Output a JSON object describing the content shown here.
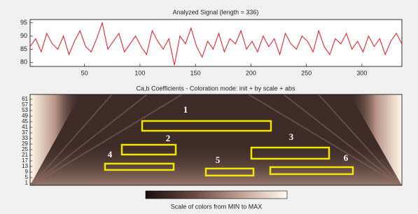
{
  "chart_data": [
    {
      "type": "line",
      "title": "Analyzed Signal (length = 336)",
      "x": [
        1,
        6,
        11,
        16,
        21,
        26,
        31,
        36,
        41,
        46,
        51,
        56,
        61,
        66,
        71,
        76,
        81,
        86,
        91,
        96,
        101,
        106,
        111,
        116,
        121,
        126,
        131,
        136,
        141,
        146,
        151,
        156,
        161,
        166,
        171,
        176,
        181,
        186,
        191,
        196,
        201,
        206,
        211,
        216,
        221,
        226,
        231,
        236,
        241,
        246,
        251,
        256,
        261,
        266,
        271,
        276,
        281,
        286,
        291,
        296,
        301,
        306,
        311,
        316,
        321,
        326,
        331,
        336
      ],
      "series": [
        {
          "color": "#e8141e",
          "values": [
            86,
            89,
            84,
            91,
            87,
            85,
            90,
            83,
            88,
            92,
            86,
            84,
            89,
            95,
            85,
            88,
            91,
            84,
            87,
            90,
            86,
            83,
            92,
            88,
            85,
            89,
            79,
            90,
            87,
            93,
            86,
            82,
            88,
            85,
            91,
            84,
            89,
            87,
            92,
            85,
            88,
            84,
            90,
            86,
            89,
            83,
            91,
            87,
            85,
            90,
            88,
            84,
            92,
            86,
            83,
            89,
            87,
            91,
            85,
            88,
            84,
            90,
            86,
            89,
            83,
            88,
            91,
            87
          ]
        }
      ],
      "xlim": [
        1,
        336
      ],
      "ylim": [
        78.5,
        96.2
      ],
      "xticks": [
        50,
        100,
        150,
        200,
        250,
        300
      ],
      "yticks": [
        80,
        85,
        90,
        95
      ]
    },
    {
      "type": "heatmap",
      "title": "Ca,b Coefficients - Coloration mode: init + by scale + abs",
      "ylim": [
        -0.5,
        64.5
      ],
      "yticks": [
        1,
        5,
        9,
        13,
        17,
        21,
        25,
        29,
        33,
        37,
        41,
        45,
        49,
        53,
        57,
        61
      ],
      "annotations": [
        "1",
        "2",
        "3",
        "4",
        "5",
        "6"
      ],
      "colorbar_label": "Scale of colors from MIN to MAX"
    }
  ]
}
